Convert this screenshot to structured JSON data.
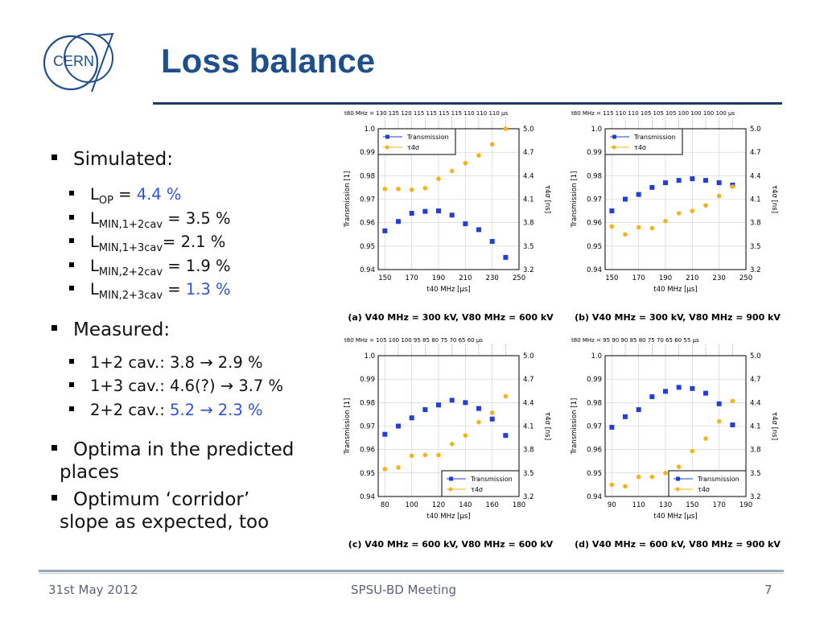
{
  "slide": {
    "title": "Loss balance",
    "logo_text": "CERN",
    "footer": {
      "date": "31st May 2012",
      "meeting": "SPSU-BD Meeting",
      "page": "7"
    }
  },
  "bullets": {
    "simulated": "Simulated:",
    "sim_items": [
      {
        "L": "L",
        "sub": "OP",
        "eq": " = ",
        "value": "4.4 %",
        "highlight": true
      },
      {
        "L": "L",
        "sub": "MIN,1+2cav",
        "eq": " = ",
        "value": "3.5 %",
        "highlight": false
      },
      {
        "L": "L",
        "sub": "MIN,1+3cav",
        "eq": "= ",
        "value": "2.1 %",
        "highlight": false
      },
      {
        "L": "L",
        "sub": "MIN,2+2cav",
        "eq": " = ",
        "value": "1.9 %",
        "highlight": false
      },
      {
        "L": "L",
        "sub": "MIN,2+3cav",
        "eq": " = ",
        "value": "1.3 %",
        "highlight": true
      }
    ],
    "measured": "Measured:",
    "meas_items": [
      {
        "text": "1+2 cav.: 3.8 → 2.9 %",
        "prefix": "1+2 cav.: ",
        "value": "3.8 → 2.9 %",
        "highlight": false
      },
      {
        "text": "1+3 cav.: 4.6(?) → 3.7 %",
        "prefix": "1+3 cav.: ",
        "value": "4.6(?) → 3.7 %",
        "highlight": false
      },
      {
        "text": "2+2 cav.: 5.2 → 2.3 %",
        "prefix": "2+2 cav.: ",
        "value": "5.2 → 2.3 %",
        "highlight": true
      }
    ],
    "optima_line1": "Optima in the predicted",
    "optima_line2": "places",
    "corridor_line1": "Optimum ‘corridor’",
    "corridor_line2": "slope as expected, too"
  },
  "colors": {
    "title": "#1f4e8c",
    "highlight": "#2f52e0",
    "transmission": "#1f3fd6",
    "tau": "#f5b21a"
  },
  "chart_data": [
    {
      "type": "scatter",
      "caption": "(a) V40 MHz = 300 kV, V80 MHz = 600 kV",
      "xlabel": "t40 MHz [µs]",
      "ylabel": "Transmission [1]",
      "y2label": "τ4σ [ns]",
      "toplabel_prefix": "t80 MHz = ",
      "toplabel_unit": "µs",
      "xlim": [
        145,
        250
      ],
      "xticks": [
        150,
        170,
        190,
        210,
        230,
        250
      ],
      "top_ticks": [
        "130",
        "125",
        "120",
        "115",
        "115",
        "115",
        "115",
        "110",
        "110",
        "110"
      ],
      "ylim": [
        0.94,
        1.0
      ],
      "yticks": [
        "0.94",
        "0.95",
        "0.96",
        "0.97",
        "0.98",
        "0.99",
        "1.0"
      ],
      "y2ticks": [
        "3.2",
        "3.5",
        "3.8",
        "4.1",
        "4.4",
        "4.7",
        "5.0"
      ],
      "y2lim": [
        3.2,
        5.0
      ],
      "legend_pos": "top-left",
      "grid": true,
      "series": [
        {
          "name": "Transmission",
          "axis": "left",
          "marker": "square",
          "x": [
            150,
            160,
            170,
            180,
            190,
            200,
            210,
            220,
            230,
            240
          ],
          "y": [
            0.9565,
            0.9605,
            0.964,
            0.9648,
            0.965,
            0.9632,
            0.9595,
            0.957,
            0.952,
            0.9452
          ]
        },
        {
          "name": "τ4σ",
          "axis": "right",
          "marker": "circle",
          "x": [
            150,
            160,
            170,
            180,
            190,
            200,
            210,
            220,
            230,
            240
          ],
          "y": [
            4.23,
            4.23,
            4.22,
            4.24,
            4.36,
            4.46,
            4.56,
            4.66,
            4.8,
            5.0
          ]
        }
      ]
    },
    {
      "type": "scatter",
      "caption": "(b) V40 MHz = 300 kV, V80 MHz = 900 kV",
      "xlabel": "t40 MHz [µs]",
      "ylabel": "Transmission [1]",
      "y2label": "τ4σ [ns]",
      "toplabel_prefix": "t80 MHz = ",
      "toplabel_unit": "µs",
      "xlim": [
        145,
        250
      ],
      "xticks": [
        150,
        170,
        190,
        210,
        230,
        250
      ],
      "top_ticks": [
        "115",
        "110",
        "110",
        "105",
        "105",
        "105",
        "100",
        "100",
        "100",
        "100"
      ],
      "ylim": [
        0.94,
        1.0
      ],
      "yticks": [
        "0.94",
        "0.95",
        "0.96",
        "0.97",
        "0.98",
        "0.99",
        "1.0"
      ],
      "y2ticks": [
        "3.2",
        "3.5",
        "3.8",
        "4.1",
        "4.4",
        "4.7",
        "5.0"
      ],
      "y2lim": [
        3.2,
        5.0
      ],
      "legend_pos": "top-left",
      "grid": true,
      "series": [
        {
          "name": "Transmission",
          "axis": "left",
          "marker": "square",
          "x": [
            150,
            160,
            170,
            180,
            190,
            200,
            210,
            220,
            230,
            240
          ],
          "y": [
            0.965,
            0.97,
            0.972,
            0.975,
            0.977,
            0.978,
            0.9787,
            0.978,
            0.977,
            0.976
          ]
        },
        {
          "name": "τ4σ",
          "axis": "right",
          "marker": "circle",
          "x": [
            150,
            160,
            170,
            180,
            190,
            200,
            210,
            220,
            230,
            240
          ],
          "y": [
            3.75,
            3.65,
            3.74,
            3.73,
            3.82,
            3.92,
            3.95,
            4.02,
            4.14,
            4.26
          ]
        }
      ]
    },
    {
      "type": "scatter",
      "caption": "(c) V40 MHz = 600 kV, V80 MHz = 600 kV",
      "xlabel": "t40 MHz [µs]",
      "ylabel": "Transmission [1]",
      "y2label": "τ4σ [ns]",
      "toplabel_prefix": "t80 MHz = ",
      "toplabel_unit": "µs",
      "xlim": [
        75,
        180
      ],
      "xticks": [
        80,
        100,
        120,
        140,
        160,
        180
      ],
      "top_ticks": [
        "105",
        "100",
        "100",
        "95",
        "85",
        "80",
        "75",
        "70",
        "65",
        "60"
      ],
      "ylim": [
        0.94,
        1.0
      ],
      "yticks": [
        "0.94",
        "0.95",
        "0.96",
        "0.97",
        "0.98",
        "0.99",
        "1.0"
      ],
      "y2ticks": [
        "3.2",
        "3.5",
        "3.8",
        "4.1",
        "4.4",
        "4.7",
        "5.0"
      ],
      "y2lim": [
        3.2,
        5.0
      ],
      "legend_pos": "bottom-right",
      "grid": true,
      "series": [
        {
          "name": "Transmission",
          "axis": "left",
          "marker": "square",
          "x": [
            80,
            90,
            100,
            110,
            120,
            130,
            140,
            150,
            160,
            170
          ],
          "y": [
            0.9665,
            0.97,
            0.9735,
            0.977,
            0.979,
            0.981,
            0.98,
            0.9775,
            0.973,
            0.966
          ]
        },
        {
          "name": "τ4σ",
          "axis": "right",
          "marker": "circle",
          "x": [
            80,
            90,
            100,
            110,
            120,
            130,
            140,
            150,
            160,
            170
          ],
          "y": [
            3.55,
            3.57,
            3.72,
            3.73,
            3.73,
            3.87,
            3.98,
            4.15,
            4.27,
            4.48
          ]
        }
      ]
    },
    {
      "type": "scatter",
      "caption": "(d) V40 MHz = 600 kV, V80 MHz = 900 kV",
      "xlabel": "t40 MHz [µs]",
      "ylabel": "Transmission [1]",
      "y2label": "τ4σ [ns]",
      "toplabel_prefix": "t80 MHz = ",
      "toplabel_unit": "µs",
      "xlim": [
        85,
        190
      ],
      "xticks": [
        90,
        110,
        130,
        150,
        170,
        190
      ],
      "top_ticks": [
        "95",
        "90",
        "90",
        "85",
        "80",
        "75",
        "70",
        "65",
        "60",
        "55"
      ],
      "ylim": [
        0.94,
        1.0
      ],
      "yticks": [
        "0.94",
        "0.95",
        "0.96",
        "0.97",
        "0.98",
        "0.99",
        "1.0"
      ],
      "y2ticks": [
        "3.2",
        "3.5",
        "3.8",
        "4.1",
        "4.4",
        "4.7",
        "5.0"
      ],
      "y2lim": [
        3.2,
        5.0
      ],
      "legend_pos": "bottom-right",
      "grid": true,
      "series": [
        {
          "name": "Transmission",
          "axis": "left",
          "marker": "square",
          "x": [
            90,
            100,
            110,
            120,
            130,
            140,
            150,
            160,
            170,
            180
          ],
          "y": [
            0.9695,
            0.974,
            0.977,
            0.9825,
            0.9848,
            0.9865,
            0.986,
            0.984,
            0.9795,
            0.9705
          ]
        },
        {
          "name": "τ4σ",
          "axis": "right",
          "marker": "circle",
          "x": [
            90,
            100,
            110,
            120,
            130,
            140,
            150,
            160,
            170,
            180
          ],
          "y": [
            3.35,
            3.33,
            3.45,
            3.45,
            3.5,
            3.58,
            3.78,
            3.94,
            4.16,
            4.42
          ]
        }
      ]
    }
  ]
}
